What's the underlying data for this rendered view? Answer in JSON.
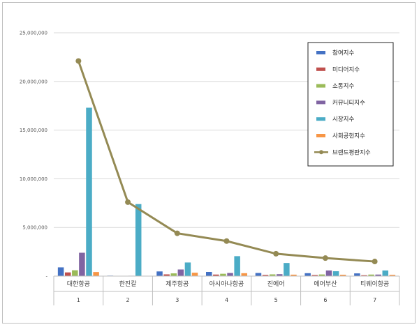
{
  "chart_data": {
    "type": "bar",
    "categories": [
      "대한항공",
      "한진칼",
      "제주항공",
      "아시아나항공",
      "진에어",
      "에어부산",
      "티웨이항공"
    ],
    "category_index": [
      "1",
      "2",
      "3",
      "4",
      "5",
      "6",
      "7"
    ],
    "y_ticks": [
      "-",
      "5,000,000",
      "10,000,000",
      "15,000,000",
      "20,000,000",
      "25,000,000"
    ],
    "ylim": [
      0,
      25000000
    ],
    "grid": true,
    "legend_position": "right",
    "series": [
      {
        "name": "참여지수",
        "kind": "bar",
        "color": "#4472c4",
        "values": [
          900000,
          50000,
          480000,
          430000,
          320000,
          300000,
          280000
        ]
      },
      {
        "name": "미디어지수",
        "kind": "bar",
        "color": "#c0504d",
        "values": [
          380000,
          20000,
          180000,
          160000,
          120000,
          110000,
          90000
        ]
      },
      {
        "name": "소통지수",
        "kind": "bar",
        "color": "#9bbb59",
        "values": [
          600000,
          30000,
          280000,
          240000,
          180000,
          170000,
          160000
        ]
      },
      {
        "name": "커뮤니티지수",
        "kind": "bar",
        "color": "#8064a2",
        "values": [
          2400000,
          40000,
          680000,
          320000,
          200000,
          580000,
          160000
        ]
      },
      {
        "name": "시장지수",
        "kind": "bar",
        "color": "#4bacc6",
        "values": [
          17300000,
          7400000,
          1400000,
          2050000,
          1350000,
          500000,
          580000
        ]
      },
      {
        "name": "사회공헌지수",
        "kind": "bar",
        "color": "#f79646",
        "values": [
          420000,
          20000,
          350000,
          300000,
          150000,
          140000,
          130000
        ]
      },
      {
        "name": "브랜드평판지수",
        "kind": "line",
        "color": "#948a54",
        "values": [
          22100000,
          7600000,
          4400000,
          3600000,
          2300000,
          1850000,
          1500000
        ]
      }
    ]
  }
}
